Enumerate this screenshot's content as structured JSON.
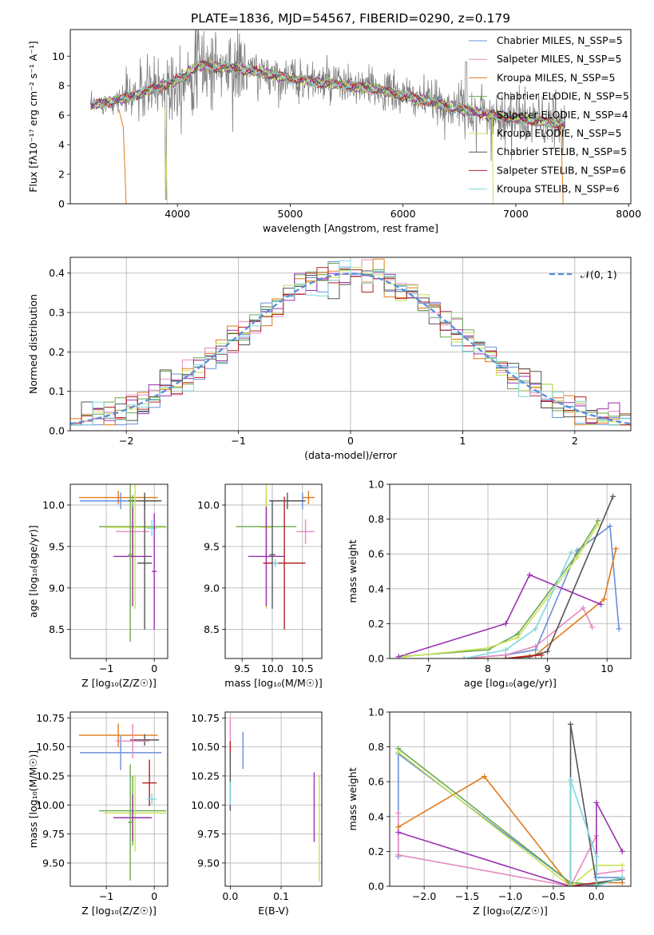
{
  "title": "PLATE=1836, MJD=54567, FIBERID=0290, z=0.179",
  "colors": {
    "Chabrier MILES": "#6a8fd8",
    "Salpeter MILES": "#e58ac2",
    "Kroupa MILES": "#e07b1a",
    "Chabrier ELODIE": "#6aa84f",
    "Salpeter ELODIE": "#9b30b0",
    "Kroupa ELODIE": "#c9e05a",
    "Chabrier STELIB": "#555555",
    "Salpeter STELIB": "#b22222",
    "Kroupa STELIB": "#7fd8df",
    "data": "#808080",
    "normal": "#5b8bd8"
  },
  "chart_data": [
    {
      "id": "spectrum",
      "type": "line",
      "xlabel": "wavelength [Angstrom, rest frame]",
      "ylabel": "Flux [fλ10⁻¹⁷ erg cm⁻² s⁻¹ A⁻¹]",
      "xlim": [
        3050,
        8020
      ],
      "ylim": [
        0,
        11.8
      ],
      "xticks": [
        4000,
        5000,
        6000,
        7000,
        8000
      ],
      "yticks": [
        0,
        2,
        4,
        6,
        8,
        10
      ],
      "legend": "top-right",
      "legend_entries": [
        "Chabrier MILES, N_SSP=5",
        "Salpeter MILES, N_SSP=5",
        "Kroupa MILES, N_SSP=5",
        "Chabrier ELODIE, N_SSP=5",
        "Salpeter ELODIE, N_SSP=4",
        "Kroupa ELODIE, N_SSP=5",
        "Chabrier STELIB, N_SSP=5",
        "Salpeter STELIB, N_SSP=6",
        "Kroupa STELIB, N_SSP=6"
      ],
      "continuum": {
        "x": [
          3200,
          3400,
          3600,
          3800,
          4000,
          4200,
          4500,
          4800,
          5000,
          5200,
          5500,
          5800,
          6000,
          6200,
          6400,
          6600,
          6800,
          7000,
          7200,
          7400
        ],
        "y": [
          6.6,
          6.9,
          7.3,
          7.8,
          8.4,
          9.4,
          9.2,
          8.8,
          8.5,
          8.3,
          8.0,
          7.7,
          7.3,
          7.0,
          6.6,
          6.3,
          6.0,
          5.8,
          5.6,
          5.4
        ]
      },
      "grid": false
    },
    {
      "id": "residuals",
      "type": "histogram",
      "xlabel": "(data-model)/error",
      "ylabel": "Normed distribution",
      "xlim": [
        -2.5,
        2.5
      ],
      "ylim": [
        0,
        0.44
      ],
      "xticks": [
        -2,
        -1,
        0,
        1,
        2
      ],
      "yticks": [
        0.0,
        0.1,
        0.2,
        0.3,
        0.4
      ],
      "legend_entries": [
        "𝒩(0, 1)"
      ],
      "legend": "top-right",
      "bins": 50,
      "grid": true
    },
    {
      "id": "age_vs_Z",
      "type": "errorbar",
      "xlabel": "Z [log₁₀(Z/Z☉)]",
      "ylabel": "age  [log₁₀(age/yr)]",
      "xlim": [
        -1.75,
        0.28
      ],
      "ylim": [
        8.15,
        10.25
      ],
      "xticks": [
        -1,
        0
      ],
      "yticks": [
        8.5,
        9.0,
        9.5,
        10.0
      ],
      "points": [
        {
          "model": "Kroupa MILES",
          "x": -0.75,
          "xerr": 0.82,
          "y": 10.09,
          "yerr": 0.08
        },
        {
          "model": "Chabrier MILES",
          "x": -0.7,
          "xerr": 0.85,
          "y": 10.05,
          "yerr": 0.1
        },
        {
          "model": "Chabrier STELIB",
          "x": -0.2,
          "xerr": 0.35,
          "y": 10.05,
          "yerr": 0.1
        },
        {
          "model": "Chabrier ELODIE",
          "x": -0.45,
          "xerr": 0.7,
          "y": 9.74,
          "yerr": 0.38
        },
        {
          "model": "Kroupa ELODIE",
          "x": -0.4,
          "xerr": 0.65,
          "y": 9.73,
          "yerr": 0.98
        },
        {
          "model": "Salpeter MILES",
          "x": -0.45,
          "xerr": 0.35,
          "y": 9.68,
          "yerr": 0.15
        },
        {
          "model": "Salpeter ELODIE",
          "x": -0.45,
          "xerr": 0.4,
          "y": 9.38,
          "yerr": 0.6
        },
        {
          "model": "Chabrier STELIB",
          "x": -0.2,
          "xerr": 0.15,
          "y": 9.3,
          "yerr": 0.8
        },
        {
          "model": "Kroupa STELIB",
          "x": -0.05,
          "xerr": 0.1,
          "y": 9.72,
          "yerr": 0.1
        },
        {
          "model": "Chabrier ELODIE",
          "x": -0.5,
          "xerr": 0.05,
          "y": 9.4,
          "yerr": 1.05
        },
        {
          "model": "Salpeter ELODIE",
          "x": 0.0,
          "xerr": 0.05,
          "y": 9.2,
          "yerr": 0.7
        }
      ],
      "grid": true
    },
    {
      "id": "age_vs_mass",
      "type": "errorbar",
      "xlabel": "mass [log₁₀(M/M☉)]",
      "ylabel": "",
      "xlim": [
        9.22,
        10.82
      ],
      "ylim": [
        8.15,
        10.25
      ],
      "xticks": [
        9.5,
        10.0,
        10.5
      ],
      "yticks": [
        8.5,
        9.0,
        9.5,
        10.0
      ],
      "points": [
        {
          "model": "Kroupa MILES",
          "x": 10.6,
          "xerr": 0.1,
          "y": 10.09,
          "yerr": 0.08
        },
        {
          "model": "Chabrier MILES",
          "x": 10.5,
          "xerr": 0.05,
          "y": 10.05,
          "yerr": 0.1
        },
        {
          "model": "Chabrier STELIB",
          "x": 10.25,
          "xerr": 0.3,
          "y": 10.05,
          "yerr": 0.1
        },
        {
          "model": "Chabrier ELODIE",
          "x": 9.9,
          "xerr": 0.5,
          "y": 9.74,
          "yerr": 0.38
        },
        {
          "model": "Kroupa ELODIE",
          "x": 9.9,
          "xerr": 0.1,
          "y": 9.73,
          "yerr": 0.98
        },
        {
          "model": "Salpeter MILES",
          "x": 10.55,
          "xerr": 0.15,
          "y": 9.68,
          "yerr": 0.15
        },
        {
          "model": "Salpeter ELODIE",
          "x": 9.9,
          "xerr": 0.3,
          "y": 9.38,
          "yerr": 0.6
        },
        {
          "model": "Salpeter STELIB",
          "x": 10.2,
          "xerr": 0.35,
          "y": 9.3,
          "yerr": 0.8
        },
        {
          "model": "Kroupa STELIB",
          "x": 10.05,
          "xerr": 0.05,
          "y": 9.3,
          "yerr": 0.05
        },
        {
          "model": "Chabrier STELIB",
          "x": 10.0,
          "xerr": 0.05,
          "y": 9.4,
          "yerr": 0.65
        }
      ],
      "grid": true
    },
    {
      "id": "weight_vs_age",
      "type": "line",
      "xlabel": "age  [log₁₀(age/yr)]",
      "ylabel": "mass weight",
      "xlim": [
        6.35,
        10.4
      ],
      "ylim": [
        0,
        1.0
      ],
      "xticks": [
        7,
        8,
        9,
        10
      ],
      "yticks": [
        0.0,
        0.2,
        0.4,
        0.6,
        0.8,
        1.0
      ],
      "series": [
        {
          "model": "Chabrier MILES",
          "x": [
            7.6,
            8.3,
            8.8,
            9.5,
            10.05,
            10.2
          ],
          "y": [
            0.0,
            0.02,
            0.05,
            0.62,
            0.76,
            0.17
          ]
        },
        {
          "model": "Salpeter MILES",
          "x": [
            7.6,
            8.3,
            8.8,
            9.6,
            9.75
          ],
          "y": [
            0.0,
            0.02,
            0.07,
            0.29,
            0.18
          ]
        },
        {
          "model": "Kroupa MILES",
          "x": [
            7.6,
            8.3,
            8.8,
            9.95,
            10.15
          ],
          "y": [
            0.0,
            0.0,
            0.02,
            0.34,
            0.63
          ]
        },
        {
          "model": "Chabrier ELODIE",
          "x": [
            6.5,
            8.0,
            8.5,
            9.5,
            9.85
          ],
          "y": [
            0.01,
            0.05,
            0.14,
            0.6,
            0.79
          ]
        },
        {
          "model": "Salpeter ELODIE",
          "x": [
            6.5,
            8.3,
            8.7,
            9.9
          ],
          "y": [
            0.01,
            0.2,
            0.48,
            0.31
          ]
        },
        {
          "model": "Kroupa ELODIE",
          "x": [
            6.6,
            8.0,
            8.5,
            9.5,
            9.85
          ],
          "y": [
            0.01,
            0.06,
            0.12,
            0.58,
            0.77
          ]
        },
        {
          "model": "Chabrier STELIB",
          "x": [
            8.3,
            8.7,
            9.0,
            10.1
          ],
          "y": [
            0.0,
            0.01,
            0.04,
            0.93
          ]
        },
        {
          "model": "Salpeter STELIB",
          "x": [
            8.3,
            8.9
          ],
          "y": [
            0.0,
            0.02
          ]
        },
        {
          "model": "Kroupa STELIB",
          "x": [
            7.6,
            8.3,
            8.8,
            9.4
          ],
          "y": [
            0.0,
            0.05,
            0.17,
            0.61
          ]
        }
      ],
      "grid": true
    },
    {
      "id": "mass_vs_Z",
      "type": "errorbar",
      "xlabel": "Z [log₁₀(Z/Z☉)]",
      "ylabel": "mass [log₁₀(M/M☉)]",
      "xlim": [
        -1.75,
        0.28
      ],
      "ylim": [
        9.3,
        10.8
      ],
      "xticks": [
        -1,
        0
      ],
      "yticks": [
        9.5,
        9.75,
        10.0,
        10.25,
        10.5,
        10.75
      ],
      "points": [
        {
          "model": "Kroupa MILES",
          "x": -0.75,
          "xerr": 0.82,
          "y": 10.6,
          "yerr": 0.1
        },
        {
          "model": "Chabrier MILES",
          "x": -0.7,
          "xerr": 0.85,
          "y": 10.45,
          "yerr": 0.15
        },
        {
          "model": "Chabrier STELIB",
          "x": -0.2,
          "xerr": 0.3,
          "y": 10.56,
          "yerr": 0.05
        },
        {
          "model": "Salpeter MILES",
          "x": -0.45,
          "xerr": 0.35,
          "y": 10.55,
          "yerr": 0.15
        },
        {
          "model": "Salpeter STELIB",
          "x": -0.1,
          "xerr": 0.15,
          "y": 10.19,
          "yerr": 0.2
        },
        {
          "model": "Kroupa STELIB",
          "x": -0.05,
          "xerr": 0.1,
          "y": 10.05,
          "yerr": 0.05
        },
        {
          "model": "Chabrier ELODIE",
          "x": -0.45,
          "xerr": 0.7,
          "y": 9.95,
          "yerr": 0.3
        },
        {
          "model": "Kroupa ELODIE",
          "x": -0.4,
          "xerr": 0.65,
          "y": 9.93,
          "yerr": 0.33
        },
        {
          "model": "Salpeter ELODIE",
          "x": -0.45,
          "xerr": 0.4,
          "y": 9.89,
          "yerr": 0.2
        },
        {
          "model": "Chabrier ELODIE",
          "x": -0.5,
          "xerr": 0.05,
          "y": 9.85,
          "yerr": 0.5
        }
      ],
      "grid": true
    },
    {
      "id": "mass_vs_ebv",
      "type": "errorbar",
      "xlabel": "E(B-V)",
      "ylabel": "",
      "xlim": [
        -0.01,
        0.18
      ],
      "ylim": [
        9.3,
        10.8
      ],
      "xticks": [
        0.0,
        0.1
      ],
      "yticks": [
        9.5,
        9.75,
        10.0,
        10.25,
        10.5,
        10.75
      ],
      "points": [
        {
          "model": "Chabrier MILES",
          "x": 0.025,
          "xerr": 0.0,
          "y": 10.47,
          "yerr": 0.16
        },
        {
          "model": "Salpeter MILES",
          "x": 0.0,
          "xerr": 0.0,
          "y": 10.55,
          "yerr": 0.2
        },
        {
          "model": "Salpeter STELIB",
          "x": 0.0,
          "xerr": 0.0,
          "y": 10.5,
          "yerr": 0.05
        },
        {
          "model": "Chabrier STELIB",
          "x": 0.0,
          "xerr": 0.0,
          "y": 10.2,
          "yerr": 0.25
        },
        {
          "model": "Kroupa STELIB",
          "x": 0.0,
          "xerr": 0.0,
          "y": 10.1,
          "yerr": 0.1
        },
        {
          "model": "Salpeter ELODIE",
          "x": 0.165,
          "xerr": 0.0,
          "y": 9.98,
          "yerr": 0.3
        },
        {
          "model": "Kroupa ELODIE",
          "x": 0.175,
          "xerr": 0.0,
          "y": 9.8,
          "yerr": 0.46
        }
      ],
      "grid": true
    },
    {
      "id": "weight_vs_Z",
      "type": "line",
      "xlabel": "Z [log₁₀(Z/Z☉)]",
      "ylabel": "mass weight",
      "xlim": [
        -2.4,
        0.4
      ],
      "ylim": [
        0,
        1.0
      ],
      "xticks": [
        -2.0,
        -1.5,
        -1.0,
        -0.5,
        0.0
      ],
      "yticks": [
        0.0,
        0.2,
        0.4,
        0.6,
        0.8,
        1.0
      ],
      "series": [
        {
          "model": "Chabrier MILES",
          "x": [
            -2.3,
            -2.3,
            -0.3,
            0.0,
            0.0,
            0.3
          ],
          "y": [
            0.17,
            0.76,
            0.02,
            0.0,
            0.05,
            0.05
          ]
        },
        {
          "model": "Salpeter MILES",
          "x": [
            -2.3,
            -2.3,
            -0.3,
            0.0,
            0.0,
            0.3
          ],
          "y": [
            0.42,
            0.18,
            0.0,
            0.29,
            0.07,
            0.09
          ]
        },
        {
          "model": "Kroupa MILES",
          "x": [
            -2.3,
            -1.3,
            -0.3,
            0.0,
            0.3
          ],
          "y": [
            0.34,
            0.63,
            0.0,
            0.02,
            0.02
          ]
        },
        {
          "model": "Chabrier ELODIE",
          "x": [
            -2.3,
            -0.3,
            0.0,
            0.3
          ],
          "y": [
            0.79,
            0.02,
            0.01,
            0.05
          ]
        },
        {
          "model": "Salpeter ELODIE",
          "x": [
            -2.3,
            -0.3,
            0.0,
            0.0,
            0.3
          ],
          "y": [
            0.31,
            0.0,
            0.0,
            0.48,
            0.2
          ]
        },
        {
          "model": "Kroupa ELODIE",
          "x": [
            -2.3,
            -0.3,
            0.0,
            0.3
          ],
          "y": [
            0.77,
            0.0,
            0.12,
            0.12
          ]
        },
        {
          "model": "Chabrier STELIB",
          "x": [
            -0.3,
            -0.3,
            0.0,
            0.3
          ],
          "y": [
            0.0,
            0.93,
            0.02,
            0.04
          ]
        },
        {
          "model": "Salpeter STELIB",
          "x": [
            -0.3,
            0.0
          ],
          "y": [
            0.0,
            0.02
          ]
        },
        {
          "model": "Kroupa STELIB",
          "x": [
            -0.3,
            -0.3,
            0.0,
            0.0,
            0.3
          ],
          "y": [
            0.0,
            0.61,
            0.17,
            0.0,
            0.05
          ]
        }
      ],
      "grid": true
    }
  ]
}
